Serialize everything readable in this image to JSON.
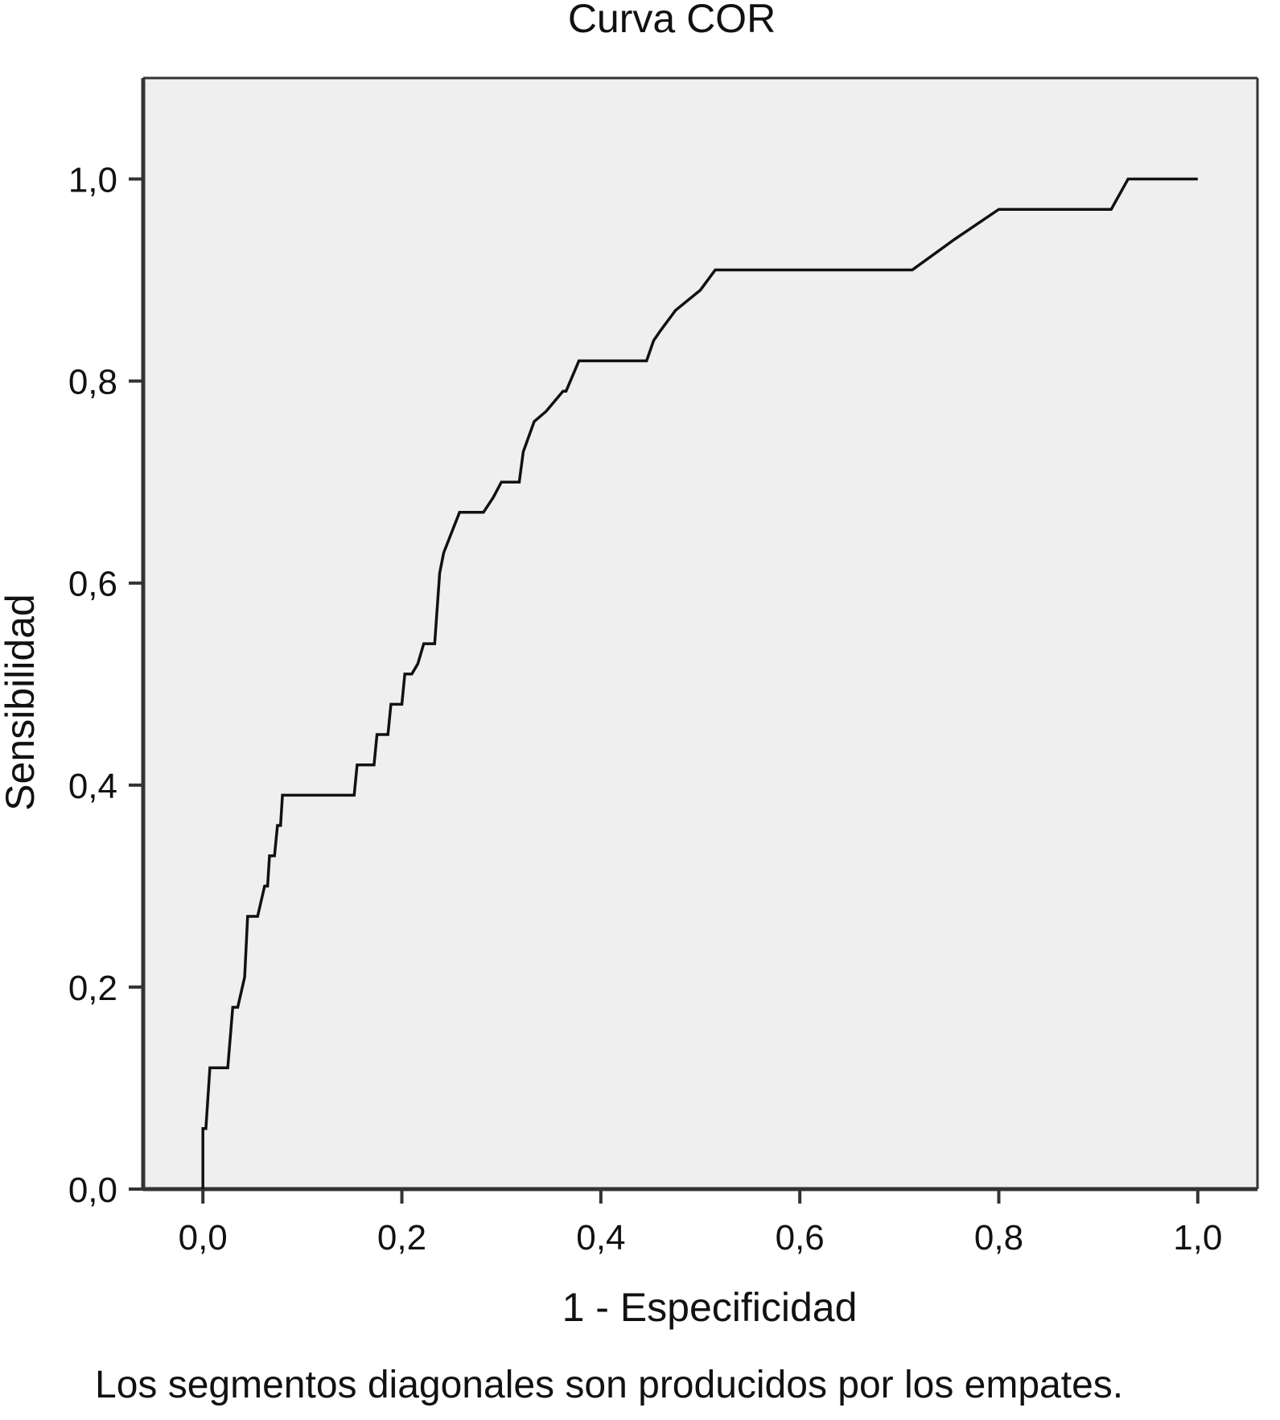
{
  "chart_data": {
    "type": "line",
    "title": "Curva COR",
    "xlabel": "1 - Especificidad",
    "ylabel": "Sensibilidad",
    "footnote": "Los segmentos diagonales son producidos por los empates.",
    "xlim": [
      -0.06,
      1.06
    ],
    "ylim": [
      0,
      1.1
    ],
    "x_ticks": [
      0,
      0.2,
      0.4,
      0.6,
      0.8,
      1.0
    ],
    "x_tick_labels": [
      "0,0",
      "0,2",
      "0,4",
      "0,6",
      "0,8",
      "1,0"
    ],
    "y_ticks": [
      0,
      0.2,
      0.4,
      0.6,
      0.8,
      1.0
    ],
    "y_tick_labels": [
      "0,0",
      "0,2",
      "0,4",
      "0,6",
      "0,8",
      "1,0"
    ],
    "grid": false,
    "colors": {
      "plot_background": "#efefef",
      "curve": "#111111",
      "frame": "#333333"
    },
    "series": [
      {
        "x": [
          0.0,
          0.0,
          0.003,
          0.007,
          0.007,
          0.025,
          0.03,
          0.035,
          0.042,
          0.045,
          0.05,
          0.055,
          0.062,
          0.065,
          0.067,
          0.072,
          0.075,
          0.078,
          0.08,
          0.083,
          0.152,
          0.155,
          0.16,
          0.172,
          0.175,
          0.18,
          0.186,
          0.189,
          0.2,
          0.203,
          0.21,
          0.216,
          0.222,
          0.224,
          0.233,
          0.238,
          0.242,
          0.25,
          0.258,
          0.262,
          0.282,
          0.292,
          0.3,
          0.315,
          0.318,
          0.322,
          0.333,
          0.345,
          0.362,
          0.365,
          0.378,
          0.446,
          0.453,
          0.46,
          0.475,
          0.5,
          0.515,
          0.713,
          0.755,
          0.8,
          0.913,
          0.93,
          1.0
        ],
        "y": [
          0.0,
          0.06,
          0.06,
          0.12,
          0.12,
          0.12,
          0.18,
          0.18,
          0.21,
          0.27,
          0.27,
          0.27,
          0.3,
          0.3,
          0.33,
          0.33,
          0.36,
          0.36,
          0.39,
          0.39,
          0.39,
          0.42,
          0.42,
          0.42,
          0.45,
          0.45,
          0.45,
          0.48,
          0.48,
          0.51,
          0.51,
          0.52,
          0.54,
          0.54,
          0.54,
          0.61,
          0.63,
          0.65,
          0.67,
          0.67,
          0.67,
          0.685,
          0.7,
          0.7,
          0.7,
          0.73,
          0.76,
          0.77,
          0.79,
          0.79,
          0.82,
          0.82,
          0.84,
          0.85,
          0.87,
          0.89,
          0.91,
          0.91,
          0.94,
          0.97,
          0.97,
          1.0,
          1.0
        ]
      }
    ]
  }
}
